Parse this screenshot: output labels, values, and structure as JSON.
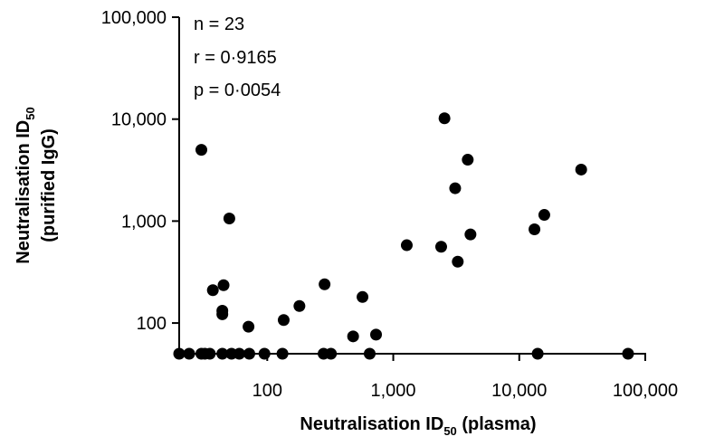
{
  "chart_data": {
    "type": "scatter",
    "xscale": "log",
    "yscale": "log",
    "xlim": [
      20,
      100000
    ],
    "ylim": [
      50,
      100000
    ],
    "xticks": [
      {
        "value": 100,
        "label": "100"
      },
      {
        "value": 1000,
        "label": "1,000"
      },
      {
        "value": 10000,
        "label": "10,000"
      },
      {
        "value": 100000,
        "label": "100,000"
      }
    ],
    "yticks": [
      {
        "value": 100,
        "label": "100"
      },
      {
        "value": 1000,
        "label": "1,000"
      },
      {
        "value": 10000,
        "label": "10,000"
      },
      {
        "value": 100000,
        "label": "100,000"
      }
    ],
    "xlabel": {
      "main": "Neutralisation ID",
      "sub": "50",
      "suffix": " (plasma)"
    },
    "ylabel": {
      "line1_main": "Neutralisation ID",
      "line1_sub": "50",
      "line2": "(purified IgG)"
    },
    "annotations": [
      "n = 23",
      "r = 0·9165",
      "p = 0·0054"
    ],
    "grid": false,
    "point_color": "#000000",
    "points": [
      {
        "x": 20,
        "y": 50
      },
      {
        "x": 24,
        "y": 50
      },
      {
        "x": 30,
        "y": 50
      },
      {
        "x": 32,
        "y": 50
      },
      {
        "x": 35,
        "y": 50
      },
      {
        "x": 44,
        "y": 50
      },
      {
        "x": 52,
        "y": 50
      },
      {
        "x": 60,
        "y": 50
      },
      {
        "x": 72,
        "y": 50
      },
      {
        "x": 95,
        "y": 50
      },
      {
        "x": 132,
        "y": 50
      },
      {
        "x": 280,
        "y": 50
      },
      {
        "x": 320,
        "y": 50
      },
      {
        "x": 650,
        "y": 50
      },
      {
        "x": 14000,
        "y": 50
      },
      {
        "x": 73000,
        "y": 50
      },
      {
        "x": 30,
        "y": 5000
      },
      {
        "x": 50,
        "y": 1060
      },
      {
        "x": 37,
        "y": 210
      },
      {
        "x": 45,
        "y": 235
      },
      {
        "x": 44,
        "y": 132
      },
      {
        "x": 44,
        "y": 122
      },
      {
        "x": 71,
        "y": 92
      },
      {
        "x": 135,
        "y": 107
      },
      {
        "x": 180,
        "y": 147
      },
      {
        "x": 285,
        "y": 240
      },
      {
        "x": 480,
        "y": 74
      },
      {
        "x": 570,
        "y": 180
      },
      {
        "x": 730,
        "y": 77
      },
      {
        "x": 1280,
        "y": 580
      },
      {
        "x": 2400,
        "y": 560
      },
      {
        "x": 2550,
        "y": 10200
      },
      {
        "x": 3100,
        "y": 2100
      },
      {
        "x": 3250,
        "y": 400
      },
      {
        "x": 3900,
        "y": 4000
      },
      {
        "x": 4100,
        "y": 740
      },
      {
        "x": 13200,
        "y": 830
      },
      {
        "x": 15800,
        "y": 1150
      },
      {
        "x": 31000,
        "y": 3200
      }
    ]
  }
}
